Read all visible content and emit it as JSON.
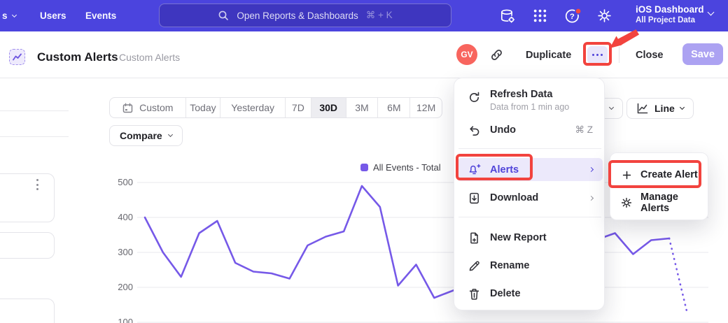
{
  "colors": {
    "nav_bg": "#4b44de",
    "nav_search_bg": "#3e36bf",
    "accent_purple": "#4f43d9",
    "line_color": "#7659e8",
    "avatar_bg": "#f8655e",
    "save_button_bg": "#aca2f2",
    "annotation_red": "#f2433e",
    "menu_highlight_bg": "#ece9fb"
  },
  "top_nav": {
    "partial_item": "s",
    "items": [
      "Users",
      "Events"
    ],
    "search": {
      "placeholder": "Open Reports & Dashboards",
      "shortcut": "⌘ + K"
    },
    "project": {
      "name": "iOS Dashboard",
      "scope": "All Project Data"
    }
  },
  "header": {
    "title": "Custom Alerts",
    "breadcrumb": "Custom Alerts",
    "avatar_initials": "GV",
    "duplicate_label": "Duplicate",
    "close_label": "Close",
    "save_label": "Save"
  },
  "toolbar": {
    "ranges": [
      "Custom",
      "Today",
      "Yesterday",
      "7D",
      "30D",
      "3M",
      "6M",
      "12M"
    ],
    "selected_range": "30D",
    "compare_label": "Compare",
    "chart_type_label": "Line"
  },
  "context_menu": {
    "items": [
      {
        "label": "Refresh Data",
        "sub": "Data from 1 min ago"
      },
      {
        "label": "Undo",
        "shortcut": "⌘ Z"
      },
      {
        "label": "Alerts"
      },
      {
        "label": "Download"
      },
      {
        "label": "New Report"
      },
      {
        "label": "Rename"
      },
      {
        "label": "Delete"
      }
    ]
  },
  "alerts_submenu": {
    "items": [
      {
        "label": "Create Alert"
      },
      {
        "label": "Manage Alerts"
      }
    ]
  },
  "chart_data": {
    "type": "line",
    "title": "",
    "legend": [
      "All Events - Total"
    ],
    "legend_position": "top-right",
    "grid": true,
    "ylim": [
      100,
      500
    ],
    "yticks": [
      100,
      200,
      300,
      400,
      500
    ],
    "x_labels_visible": false,
    "series": [
      {
        "name": "All Events - Total",
        "values": [
          400,
          300,
          230,
          355,
          390,
          270,
          245,
          240,
          225,
          320,
          345,
          360,
          490,
          430,
          205,
          265,
          170,
          190,
          null,
          null,
          null,
          null,
          null,
          null,
          null,
          null,
          355,
          295,
          335,
          340
        ],
        "values_note": "null values are obscured by the open context menu",
        "dashed_tail_value": 125
      }
    ]
  }
}
